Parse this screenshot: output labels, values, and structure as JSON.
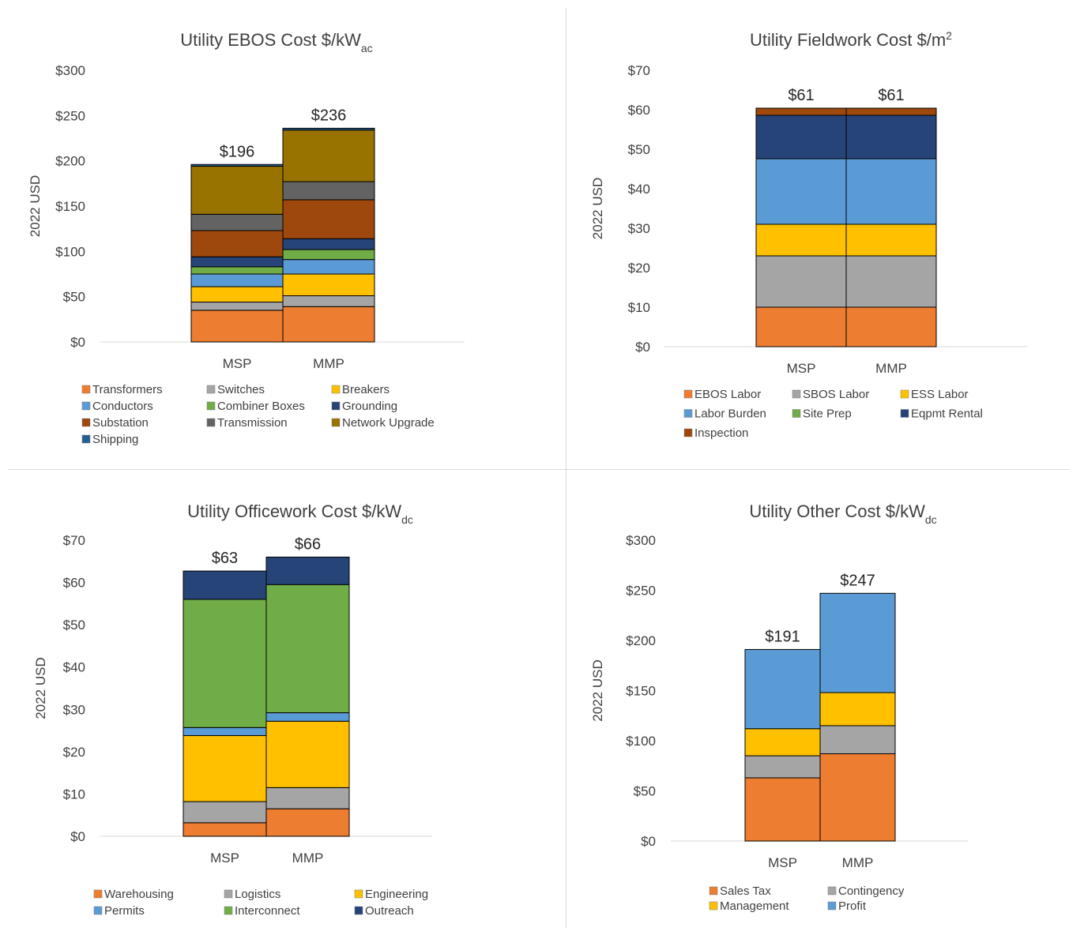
{
  "chart_data": [
    {
      "type": "bar",
      "stacked": true,
      "title": "Utility EBOS Cost $/kW",
      "title_sub": "ac",
      "ylabel": "2022 USD",
      "ylim": [
        0,
        300
      ],
      "yticks": [
        "$0",
        "$50",
        "$100",
        "$150",
        "$200",
        "$250",
        "$300"
      ],
      "categories": [
        "MSP",
        "MMP"
      ],
      "totals": [
        "$196",
        "$236"
      ],
      "series": [
        {
          "name": "Transformers",
          "color": "#ED7D31",
          "values": [
            35,
            39
          ]
        },
        {
          "name": "Switches",
          "color": "#A5A5A5",
          "values": [
            9,
            12
          ]
        },
        {
          "name": "Breakers",
          "color": "#FFC000",
          "values": [
            17,
            24
          ]
        },
        {
          "name": "Conductors",
          "color": "#5B9BD5",
          "values": [
            14,
            16
          ]
        },
        {
          "name": "Combiner Boxes",
          "color": "#70AD47",
          "values": [
            8,
            11
          ]
        },
        {
          "name": "Grounding",
          "color": "#264478",
          "values": [
            11,
            12
          ]
        },
        {
          "name": "Substation",
          "color": "#9E480E",
          "values": [
            29,
            43
          ]
        },
        {
          "name": "Transmission",
          "color": "#636363",
          "values": [
            18,
            20
          ]
        },
        {
          "name": "Network Upgrade",
          "color": "#997300",
          "values": [
            53,
            57
          ]
        },
        {
          "name": "Shipping",
          "color": "#255E91",
          "values": [
            2,
            2
          ]
        }
      ],
      "legend_position": "bottom"
    },
    {
      "type": "bar",
      "stacked": true,
      "title": "Utility Fieldwork Cost $/m",
      "title_sup": "2",
      "ylabel": "2022 USD",
      "ylim": [
        0,
        70
      ],
      "yticks": [
        "$0",
        "$10",
        "$20",
        "$30",
        "$40",
        "$50",
        "$60",
        "$70"
      ],
      "categories": [
        "MSP",
        "MMP"
      ],
      "totals": [
        "$61",
        "$61"
      ],
      "series": [
        {
          "name": "EBOS Labor",
          "color": "#ED7D31",
          "values": [
            10,
            10
          ]
        },
        {
          "name": "SBOS Labor",
          "color": "#A5A5A5",
          "values": [
            13,
            13
          ]
        },
        {
          "name": "ESS Labor",
          "color": "#FFC000",
          "values": [
            8,
            8
          ]
        },
        {
          "name": "Labor Burden",
          "color": "#5B9BD5",
          "values": [
            16.6,
            16.6
          ]
        },
        {
          "name": "Site Prep",
          "color": "#70AD47",
          "values": [
            0,
            0
          ]
        },
        {
          "name": "Eqpmt Rental",
          "color": "#264478",
          "values": [
            11,
            11
          ]
        },
        {
          "name": "Inspection",
          "color": "#9E480E",
          "values": [
            1.8,
            1.8
          ]
        }
      ],
      "legend_position": "bottom"
    },
    {
      "type": "bar",
      "stacked": true,
      "title": "Utility Officework Cost $/kW",
      "title_sub": "dc",
      "ylabel": "2022 USD",
      "ylim": [
        0,
        70
      ],
      "yticks": [
        "$0",
        "$10",
        "$20",
        "$30",
        "$40",
        "$50",
        "$60",
        "$70"
      ],
      "categories": [
        "MSP",
        "MMP"
      ],
      "totals": [
        "$63",
        "$66"
      ],
      "series": [
        {
          "name": "Warehousing",
          "color": "#ED7D31",
          "values": [
            3.2,
            6.5
          ]
        },
        {
          "name": "Logistics",
          "color": "#A5A5A5",
          "values": [
            5,
            5
          ]
        },
        {
          "name": "Engineering",
          "color": "#FFC000",
          "values": [
            15.6,
            15.7
          ]
        },
        {
          "name": "Permits",
          "color": "#5B9BD5",
          "values": [
            1.9,
            2
          ]
        },
        {
          "name": "Interconnect",
          "color": "#70AD47",
          "values": [
            30.3,
            30.3
          ]
        },
        {
          "name": "Outreach",
          "color": "#264478",
          "values": [
            6.7,
            6.5
          ]
        }
      ],
      "legend_position": "bottom"
    },
    {
      "type": "bar",
      "stacked": true,
      "title": "Utility Other Cost $/kW",
      "title_sub": "dc",
      "ylabel": "2022 USD",
      "ylim": [
        0,
        300
      ],
      "yticks": [
        "$0",
        "$50",
        "$100",
        "$150",
        "$200",
        "$250",
        "$300"
      ],
      "categories": [
        "MSP",
        "MMP"
      ],
      "totals": [
        "$191",
        "$247"
      ],
      "series": [
        {
          "name": "Sales Tax",
          "color": "#ED7D31",
          "values": [
            63,
            87
          ]
        },
        {
          "name": "Contingency",
          "color": "#A5A5A5",
          "values": [
            22,
            28
          ]
        },
        {
          "name": "Management",
          "color": "#FFC000",
          "values": [
            27,
            33
          ]
        },
        {
          "name": "Profit",
          "color": "#5B9BD5",
          "values": [
            79,
            99
          ]
        }
      ],
      "legend_position": "bottom"
    }
  ]
}
